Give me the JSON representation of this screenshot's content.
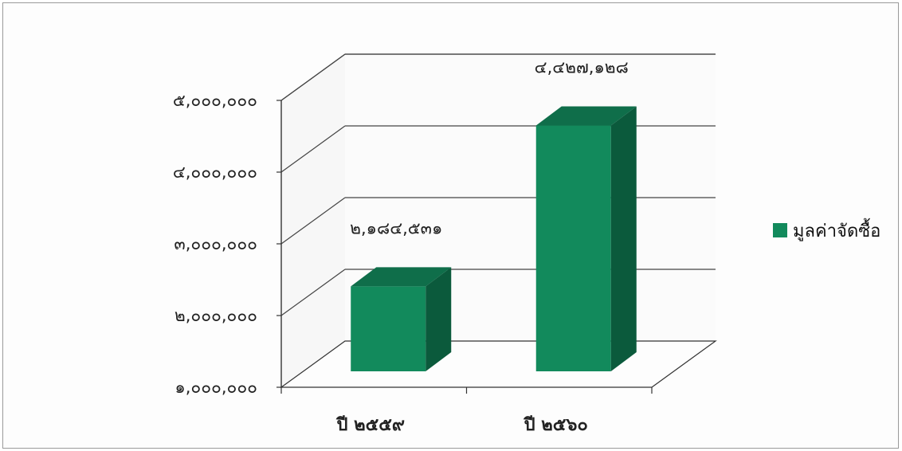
{
  "chart_data": {
    "type": "bar",
    "categories": [
      "ปี ๒๕๕๙",
      "ปี ๒๕๖๐"
    ],
    "series": [
      {
        "name": "มูลค่าจัดซื้อ",
        "values": [
          2184531,
          4427128
        ],
        "data_labels": [
          "๒,๑๘๔,๕๓๑",
          "๔,๔๒๗,๑๒๘"
        ]
      }
    ],
    "ylim": [
      1000000,
      5000000
    ],
    "yticks": [
      1000000,
      2000000,
      3000000,
      4000000,
      5000000
    ],
    "ytick_labels": [
      "๑,๐๐๐,๐๐๐",
      "๒,๐๐๐,๐๐๐",
      "๓,๐๐๐,๐๐๐",
      "๔,๐๐๐,๐๐๐",
      "๕,๐๐๐,๐๐๐"
    ],
    "grid": true,
    "legend_position": "right",
    "style": "3d",
    "colors": {
      "bar_front": "#128a5c",
      "bar_top": "#0f6e4a",
      "bar_side": "#0b5a3c",
      "legend": "#128a5c"
    }
  }
}
